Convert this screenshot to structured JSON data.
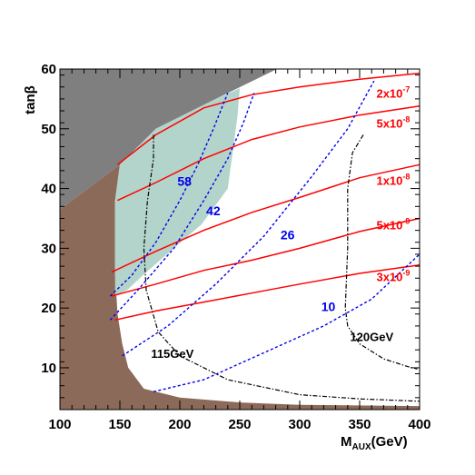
{
  "chart_data": {
    "type": "line",
    "xlabel": "M",
    "xlabel_sub": "AUX",
    "xlabel_unit": "(GeV)",
    "ylabel": "tanβ",
    "xlim": [
      100,
      400
    ],
    "ylim": [
      3,
      60
    ],
    "xticks": [
      100,
      150,
      200,
      250,
      300,
      350,
      400
    ],
    "yticks": [
      10,
      20,
      30,
      40,
      50,
      60
    ],
    "colors": {
      "excluded_gray": "#7f7f7f",
      "excluded_brown": "#8c6a5a",
      "allowed_green": "#b3d4ca",
      "branching_red": "#ff0000",
      "contour_blue": "#0000ee",
      "higgs_black": "#000000"
    },
    "regions": [
      {
        "name": "gray-excluded",
        "points": [
          [
            100,
            60
          ],
          [
            281,
            60
          ],
          [
            230,
            55
          ],
          [
            180,
            50
          ],
          [
            150,
            44
          ],
          [
            100,
            36.5
          ],
          [
            100,
            60
          ]
        ]
      },
      {
        "name": "brown-excluded",
        "points": [
          [
            100,
            36.5
          ],
          [
            150,
            44
          ],
          [
            146,
            38
          ],
          [
            146,
            26
          ],
          [
            148,
            19
          ],
          [
            152,
            14
          ],
          [
            157,
            10
          ],
          [
            170,
            6.5
          ],
          [
            200,
            5
          ],
          [
            250,
            4.2
          ],
          [
            300,
            3.8
          ],
          [
            400,
            3.6
          ],
          [
            400,
            3
          ],
          [
            100,
            3
          ],
          [
            100,
            36.5
          ]
        ]
      },
      {
        "name": "green-allowed",
        "points": [
          [
            146,
            22
          ],
          [
            146,
            38
          ],
          [
            150,
            44
          ],
          [
            180,
            50
          ],
          [
            230,
            55
          ],
          [
            250,
            56.8
          ],
          [
            248,
            52
          ],
          [
            240,
            40
          ],
          [
            218,
            34
          ],
          [
            195,
            30
          ],
          [
            172,
            26
          ],
          [
            156,
            23
          ],
          [
            146,
            22
          ]
        ]
      }
    ],
    "red_curves": [
      {
        "label_base": "2x10",
        "label_exp": "-7",
        "label_xy": [
          364,
          55.2
        ],
        "points": [
          [
            148,
            44
          ],
          [
            180,
            49
          ],
          [
            220,
            53.5
          ],
          [
            260,
            55.7
          ],
          [
            300,
            57
          ],
          [
            350,
            58.3
          ],
          [
            400,
            59.3
          ]
        ]
      },
      {
        "label_base": "5x10",
        "label_exp": "-8",
        "label_xy": [
          364,
          50.2
        ],
        "points": [
          [
            148,
            38
          ],
          [
            180,
            41
          ],
          [
            220,
            45
          ],
          [
            260,
            48.2
          ],
          [
            300,
            50.3
          ],
          [
            350,
            52.3
          ],
          [
            400,
            53.8
          ]
        ]
      },
      {
        "label_base": "1x10",
        "label_exp": "-8",
        "label_xy": [
          364,
          40.6
        ],
        "points": [
          [
            143,
            26
          ],
          [
            180,
            29.5
          ],
          [
            220,
            33
          ],
          [
            260,
            36
          ],
          [
            300,
            38.5
          ],
          [
            350,
            41.8
          ],
          [
            400,
            44
          ]
        ]
      },
      {
        "label_base": "5x10",
        "label_exp": "-9",
        "label_xy": [
          364,
          33.2
        ],
        "points": [
          [
            143,
            22
          ],
          [
            180,
            24
          ],
          [
            220,
            26.3
          ],
          [
            260,
            28
          ],
          [
            300,
            30
          ],
          [
            350,
            32.8
          ],
          [
            400,
            35
          ]
        ]
      },
      {
        "label_base": "3x10",
        "label_exp": "-9",
        "label_xy": [
          364,
          24.5
        ],
        "points": [
          [
            146,
            18
          ],
          [
            180,
            19.5
          ],
          [
            220,
            21
          ],
          [
            260,
            22.5
          ],
          [
            300,
            24
          ],
          [
            350,
            25.8
          ],
          [
            400,
            27.2
          ]
        ]
      }
    ],
    "blue_curves": [
      {
        "label": "58",
        "label_xy": [
          198,
          40.5
        ],
        "points": [
          [
            142,
            22
          ],
          [
            160,
            25.5
          ],
          [
            180,
            31
          ],
          [
            200,
            38
          ],
          [
            215,
            44
          ],
          [
            228,
            50
          ],
          [
            240,
            56
          ]
        ]
      },
      {
        "label": "42",
        "label_xy": [
          222,
          35.5
        ],
        "points": [
          [
            142,
            18
          ],
          [
            165,
            23
          ],
          [
            195,
            30
          ],
          [
            220,
            38
          ],
          [
            240,
            45
          ],
          [
            253,
            51
          ],
          [
            262,
            56
          ]
        ]
      },
      {
        "label": "26",
        "label_xy": [
          284,
          31.5
        ],
        "points": [
          [
            152,
            12
          ],
          [
            190,
            17
          ],
          [
            230,
            24
          ],
          [
            270,
            32
          ],
          [
            310,
            42
          ],
          [
            340,
            50
          ],
          [
            362,
            58
          ]
        ]
      },
      {
        "label": "10",
        "label_xy": [
          318,
          19.5
        ],
        "points": [
          [
            178,
            6
          ],
          [
            220,
            8
          ],
          [
            270,
            12.5
          ],
          [
            320,
            17
          ],
          [
            360,
            21.5
          ],
          [
            400,
            29
          ]
        ]
      }
    ],
    "black_curves": [
      {
        "label": "115GeV",
        "label_xy": [
          176,
          11.7
        ],
        "points": [
          [
            178,
            49
          ],
          [
            178,
            45
          ],
          [
            173,
            38
          ],
          [
            170,
            30
          ],
          [
            172,
            23
          ],
          [
            182,
            16
          ],
          [
            200,
            12
          ],
          [
            240,
            8
          ],
          [
            300,
            5.5
          ],
          [
            350,
            4.8
          ],
          [
            400,
            4.4
          ]
        ]
      },
      {
        "label": "120GeV",
        "label_xy": [
          342,
          14.5
        ],
        "points": [
          [
            353,
            49
          ],
          [
            344,
            46
          ],
          [
            340,
            40
          ],
          [
            340,
            30
          ],
          [
            338,
            20
          ],
          [
            340,
            17
          ],
          [
            350,
            14
          ],
          [
            370,
            11.5
          ],
          [
            390,
            10.2
          ],
          [
            398,
            9.8
          ]
        ]
      }
    ]
  }
}
